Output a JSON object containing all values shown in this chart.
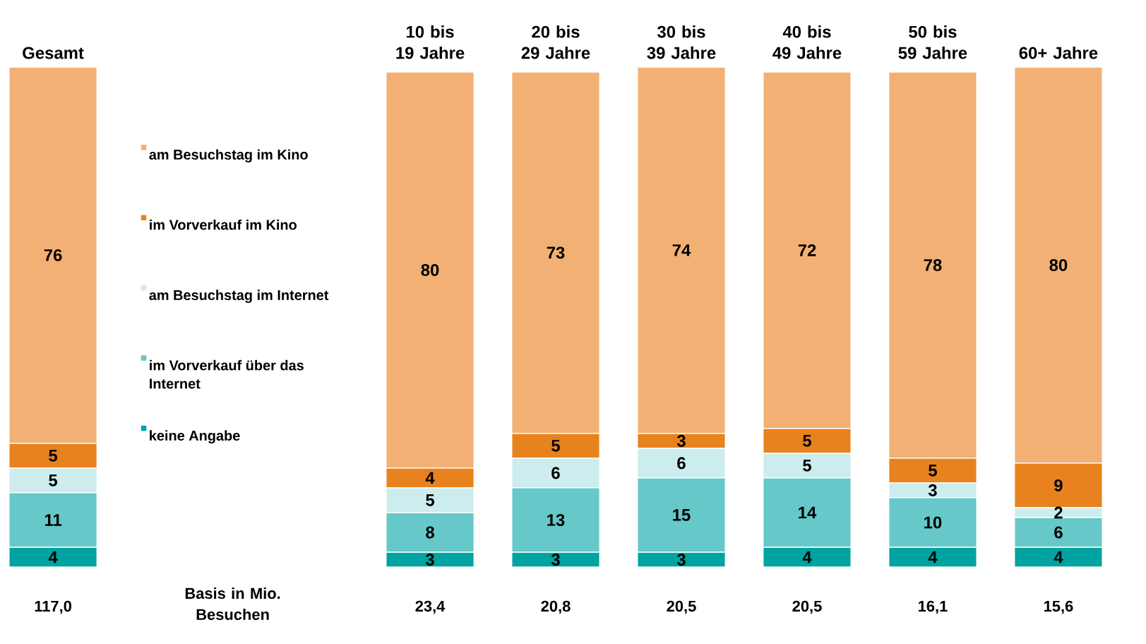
{
  "chart_data": {
    "type": "bar",
    "stacked": true,
    "data_labels": true,
    "legend": "left",
    "categories": [
      "Gesamt",
      null,
      null,
      "10 bis 19 Jahre",
      "20 bis 29 Jahre",
      "30 bis 39 Jahre",
      "40 bis 49 Jahre",
      "50 bis 59 Jahre",
      "60+ Jahre"
    ],
    "series": [
      {
        "name": "keine Angabe",
        "color": "#00a3a0",
        "values": [
          4,
          null,
          null,
          3,
          3,
          3,
          4,
          4,
          4
        ]
      },
      {
        "name": "im Vorverkauf über das Internet",
        "color": "#66c8c8",
        "values": [
          11,
          null,
          null,
          8,
          13,
          15,
          14,
          10,
          6
        ]
      },
      {
        "name": "am Besuchstag im Internet",
        "color": "#cdeced",
        "values": [
          5,
          null,
          null,
          5,
          6,
          6,
          5,
          3,
          2
        ]
      },
      {
        "name": "im Vorverkauf im Kino",
        "color": "#e8821e",
        "values": [
          5,
          null,
          null,
          4,
          5,
          3,
          5,
          5,
          9
        ]
      },
      {
        "name": "am Besuchstag im Kino",
        "color": "#f2b074",
        "values": [
          76,
          null,
          null,
          80,
          73,
          74,
          72,
          78,
          80
        ]
      }
    ],
    "annotations": [
      "Basis in Mio. Besuchen",
      "117,0",
      "23,4",
      "20,8",
      "20,5",
      "20,5",
      "16,1",
      "15,6"
    ]
  }
}
